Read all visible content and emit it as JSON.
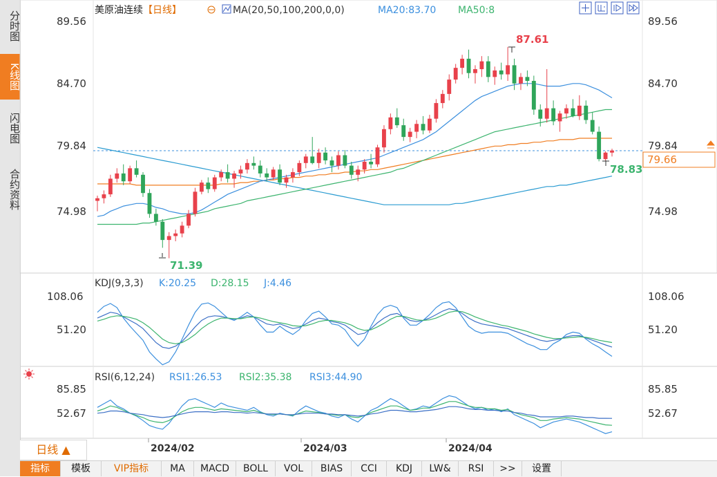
{
  "side_tabs": [
    "分时图",
    "K线图",
    "闪电图",
    "合约资料"
  ],
  "main_header": {
    "symbol": "美原油连续",
    "period": "【日线】",
    "ma_label": "MA(20,50,100,200,0,0)",
    "ma20": "MA20:83.70",
    "ma50": "MA50:8"
  },
  "price_axis": [
    "89.56",
    "84.70",
    "79.84",
    "74.98"
  ],
  "current_price": "79.66",
  "labels": {
    "high": "87.61",
    "low": "71.39",
    "last_low": "78.83"
  },
  "kdj": {
    "title": "KDJ(9,3,3)",
    "k": "K:20.25",
    "d": "D:28.15",
    "j": "J:4.46",
    "ticks": [
      "108.06",
      "51.20"
    ]
  },
  "rsi": {
    "title": "RSI(6,12,24)",
    "rsi1": "RSI1:26.53",
    "rsi2": "RSI2:35.38",
    "rsi3": "RSI3:44.90",
    "ticks": [
      "85.85",
      "52.67"
    ]
  },
  "x_dates": [
    "2024/02",
    "2024/03",
    "2024/04"
  ],
  "period_button": "日线 ▲",
  "bottom_tabs": [
    "指标",
    "模板",
    "VIP指标",
    "MA",
    "MACD",
    "BOLL",
    "VOL",
    "BIAS",
    "CCI",
    "KDJ",
    "LW&",
    "RSI",
    ">>",
    "设置"
  ],
  "colors": {
    "up": "#e8414b",
    "down": "#2fa55a",
    "ma20": "#3b8fde",
    "ma50": "#3cb46e",
    "ma100": "#f07d21",
    "ma200": "#2a9bd1",
    "accent": "#f07d21"
  },
  "chart_data": {
    "type": "candlestick",
    "title": "美原油连续【日线】",
    "ylim": [
      70,
      90
    ],
    "candles": [
      [
        75.8,
        76.2,
        75.0,
        76.0
      ],
      [
        76.0,
        76.6,
        75.6,
        76.3
      ],
      [
        76.3,
        77.8,
        76.1,
        77.5
      ],
      [
        77.5,
        78.3,
        77.2,
        77.9
      ],
      [
        77.9,
        78.6,
        77.0,
        77.3
      ],
      [
        77.3,
        78.5,
        77.1,
        78.3
      ],
      [
        78.3,
        78.9,
        77.6,
        77.8
      ],
      [
        77.8,
        78.0,
        76.1,
        76.4
      ],
      [
        76.4,
        76.7,
        74.5,
        74.8
      ],
      [
        74.8,
        75.2,
        73.9,
        74.2
      ],
      [
        74.2,
        74.4,
        72.2,
        72.8
      ],
      [
        72.8,
        73.4,
        71.4,
        73.1
      ],
      [
        73.1,
        73.6,
        72.7,
        73.3
      ],
      [
        73.3,
        74.2,
        73.0,
        73.9
      ],
      [
        73.9,
        75.1,
        73.7,
        74.8
      ],
      [
        74.8,
        76.8,
        74.6,
        76.5
      ],
      [
        76.5,
        77.4,
        76.3,
        77.2
      ],
      [
        77.2,
        77.6,
        76.4,
        76.7
      ],
      [
        76.7,
        77.8,
        76.5,
        77.6
      ],
      [
        77.6,
        78.2,
        77.3,
        78.0
      ],
      [
        78.0,
        78.6,
        77.2,
        77.5
      ],
      [
        77.5,
        78.1,
        76.8,
        77.9
      ],
      [
        77.9,
        78.5,
        77.5,
        78.2
      ],
      [
        78.2,
        79.0,
        77.9,
        78.7
      ],
      [
        78.7,
        79.2,
        78.2,
        78.5
      ],
      [
        78.5,
        78.9,
        77.6,
        77.9
      ],
      [
        77.9,
        78.3,
        77.3,
        77.6
      ],
      [
        77.6,
        78.4,
        77.4,
        78.2
      ],
      [
        78.2,
        78.6,
        77.0,
        77.2
      ],
      [
        77.2,
        77.8,
        76.8,
        77.6
      ],
      [
        77.6,
        78.3,
        77.2,
        78.0
      ],
      [
        78.0,
        78.9,
        77.7,
        78.7
      ],
      [
        78.7,
        79.4,
        78.3,
        79.2
      ],
      [
        79.2,
        80.7,
        78.6,
        78.7
      ],
      [
        78.7,
        79.8,
        78.3,
        79.5
      ],
      [
        79.5,
        79.9,
        78.6,
        78.9
      ],
      [
        78.9,
        79.2,
        78.0,
        78.5
      ],
      [
        78.5,
        79.6,
        78.2,
        79.3
      ],
      [
        79.3,
        79.7,
        78.3,
        78.5
      ],
      [
        78.5,
        78.8,
        77.5,
        77.8
      ],
      [
        77.8,
        78.5,
        77.3,
        78.2
      ],
      [
        78.2,
        79.0,
        77.9,
        78.8
      ],
      [
        78.8,
        79.4,
        78.3,
        78.6
      ],
      [
        78.6,
        80.1,
        78.4,
        79.9
      ],
      [
        79.9,
        81.6,
        79.5,
        81.3
      ],
      [
        81.3,
        82.5,
        80.9,
        82.2
      ],
      [
        82.2,
        82.9,
        81.4,
        81.6
      ],
      [
        81.6,
        82.1,
        80.4,
        80.7
      ],
      [
        80.7,
        81.4,
        80.3,
        81.1
      ],
      [
        81.1,
        82.0,
        80.6,
        81.7
      ],
      [
        81.7,
        82.3,
        80.9,
        81.2
      ],
      [
        81.2,
        82.4,
        81.0,
        82.1
      ],
      [
        82.1,
        83.6,
        81.8,
        83.3
      ],
      [
        83.3,
        84.3,
        82.9,
        84.0
      ],
      [
        84.0,
        85.5,
        83.5,
        85.1
      ],
      [
        85.1,
        86.3,
        84.8,
        86.0
      ],
      [
        86.0,
        87.0,
        85.5,
        86.7
      ],
      [
        86.7,
        87.4,
        85.2,
        85.6
      ],
      [
        85.6,
        86.2,
        84.8,
        85.9
      ],
      [
        85.9,
        86.9,
        85.3,
        86.5
      ],
      [
        86.5,
        86.9,
        84.9,
        85.3
      ],
      [
        85.3,
        86.1,
        84.7,
        85.8
      ],
      [
        85.8,
        86.4,
        85.1,
        85.5
      ],
      [
        85.5,
        87.61,
        85.0,
        86.2
      ],
      [
        86.2,
        86.7,
        84.3,
        84.8
      ],
      [
        84.8,
        85.6,
        84.3,
        85.3
      ],
      [
        85.3,
        85.8,
        84.6,
        85.0
      ],
      [
        85.0,
        85.4,
        82.4,
        82.8
      ],
      [
        82.8,
        83.2,
        81.5,
        82.1
      ],
      [
        82.1,
        85.9,
        81.8,
        82.9
      ],
      [
        82.9,
        83.5,
        81.6,
        81.9
      ],
      [
        81.9,
        82.7,
        81.1,
        82.5
      ],
      [
        82.5,
        83.2,
        82.1,
        82.9
      ],
      [
        82.9,
        83.6,
        82.2,
        82.3
      ],
      [
        82.3,
        83.9,
        82.0,
        83.1
      ],
      [
        83.1,
        83.5,
        81.7,
        82.0
      ],
      [
        82.0,
        82.6,
        80.9,
        81.1
      ],
      [
        81.1,
        81.5,
        78.83,
        79.0
      ],
      [
        79.0,
        79.6,
        78.9,
        79.5
      ],
      [
        79.5,
        79.8,
        79.2,
        79.66
      ]
    ],
    "ma20": [
      74.6,
      74.7,
      75.0,
      75.2,
      75.4,
      75.5,
      75.6,
      75.6,
      75.5,
      75.3,
      75.2,
      75.0,
      74.9,
      74.8,
      74.8,
      74.9,
      75.1,
      75.4,
      75.7,
      76.0,
      76.3,
      76.5,
      76.7,
      76.9,
      77.1,
      77.3,
      77.4,
      77.5,
      77.6,
      77.7,
      77.8,
      77.9,
      78.0,
      78.1,
      78.2,
      78.3,
      78.4,
      78.5,
      78.6,
      78.7,
      78.8,
      78.9,
      79.0,
      79.1,
      79.3,
      79.5,
      79.7,
      79.9,
      80.1,
      80.3,
      80.5,
      80.8,
      81.1,
      81.5,
      81.9,
      82.3,
      82.7,
      83.1,
      83.5,
      83.8,
      84.0,
      84.2,
      84.4,
      84.6,
      84.7,
      84.8,
      84.8,
      84.8,
      84.7,
      84.6,
      84.6,
      84.6,
      84.7,
      84.8,
      84.8,
      84.7,
      84.5,
      84.3,
      84.0,
      83.7
    ],
    "ma50": [
      74.0,
      74.0,
      74.0,
      74.0,
      74.0,
      74.0,
      74.0,
      74.1,
      74.1,
      74.2,
      74.3,
      74.4,
      74.5,
      74.6,
      74.7,
      74.8,
      74.9,
      75.0,
      75.2,
      75.3,
      75.4,
      75.5,
      75.6,
      75.8,
      75.9,
      76.0,
      76.1,
      76.2,
      76.3,
      76.4,
      76.5,
      76.6,
      76.7,
      76.8,
      76.9,
      77.0,
      77.1,
      77.2,
      77.3,
      77.4,
      77.5,
      77.6,
      77.7,
      77.8,
      77.9,
      78.0,
      78.2,
      78.3,
      78.5,
      78.7,
      78.9,
      79.1,
      79.3,
      79.5,
      79.7,
      79.9,
      80.1,
      80.3,
      80.5,
      80.7,
      80.9,
      81.1,
      81.2,
      81.3,
      81.4,
      81.5,
      81.6,
      81.7,
      81.8,
      81.9,
      82.0,
      82.1,
      82.2,
      82.3,
      82.4,
      82.5,
      82.6,
      82.7,
      82.8,
      82.8
    ],
    "ma100": [
      77.1,
      77.1,
      77.1,
      77.1,
      77.1,
      77.1,
      77.0,
      77.0,
      77.0,
      77.0,
      77.0,
      77.0,
      77.0,
      77.0,
      77.0,
      77.0,
      77.0,
      77.0,
      77.0,
      77.1,
      77.1,
      77.1,
      77.2,
      77.2,
      77.3,
      77.3,
      77.4,
      77.4,
      77.5,
      77.5,
      77.6,
      77.6,
      77.7,
      77.7,
      77.8,
      77.8,
      77.9,
      77.9,
      78.0,
      78.0,
      78.1,
      78.1,
      78.2,
      78.2,
      78.3,
      78.4,
      78.5,
      78.6,
      78.7,
      78.8,
      78.9,
      79.0,
      79.1,
      79.2,
      79.3,
      79.4,
      79.5,
      79.6,
      79.7,
      79.8,
      79.9,
      80.0,
      80.0,
      80.1,
      80.1,
      80.2,
      80.2,
      80.3,
      80.3,
      80.4,
      80.4,
      80.5,
      80.5,
      80.5,
      80.6,
      80.6,
      80.6,
      80.6,
      80.6,
      80.6
    ],
    "ma200": [
      79.9,
      79.8,
      79.7,
      79.6,
      79.5,
      79.4,
      79.3,
      79.2,
      79.1,
      79.0,
      78.9,
      78.8,
      78.7,
      78.6,
      78.5,
      78.4,
      78.3,
      78.2,
      78.1,
      78.0,
      77.9,
      77.8,
      77.7,
      77.6,
      77.5,
      77.4,
      77.3,
      77.2,
      77.1,
      77.0,
      76.9,
      76.8,
      76.7,
      76.6,
      76.5,
      76.4,
      76.3,
      76.2,
      76.1,
      76.0,
      75.9,
      75.8,
      75.7,
      75.6,
      75.5,
      75.5,
      75.5,
      75.5,
      75.5,
      75.5,
      75.5,
      75.5,
      75.5,
      75.5,
      75.5,
      75.6,
      75.6,
      75.7,
      75.8,
      75.9,
      76.0,
      76.1,
      76.2,
      76.3,
      76.4,
      76.5,
      76.6,
      76.7,
      76.8,
      76.9,
      76.9,
      77.0,
      77.0,
      77.1,
      77.2,
      77.3,
      77.4,
      77.5,
      77.6,
      77.7
    ],
    "kdj": {
      "ylim": [
        0,
        130
      ],
      "k": [
        70,
        75,
        80,
        78,
        72,
        66,
        60,
        52,
        40,
        28,
        20,
        18,
        22,
        30,
        42,
        55,
        66,
        72,
        74,
        73,
        70,
        68,
        70,
        74,
        72,
        66,
        60,
        58,
        60,
        56,
        52,
        54,
        60,
        66,
        70,
        68,
        64,
        62,
        58,
        50,
        42,
        44,
        52,
        62,
        70,
        76,
        78,
        72,
        66,
        64,
        66,
        70,
        76,
        82,
        86,
        84,
        78,
        70,
        64,
        60,
        58,
        56,
        54,
        52,
        48,
        44,
        40,
        36,
        32,
        30,
        32,
        34,
        38,
        40,
        40,
        36,
        32,
        28,
        24,
        20.25
      ],
      "d": [
        65,
        68,
        72,
        74,
        73,
        71,
        68,
        62,
        54,
        44,
        34,
        28,
        26,
        28,
        34,
        42,
        52,
        60,
        66,
        70,
        70,
        69,
        69,
        71,
        72,
        70,
        67,
        64,
        62,
        60,
        57,
        56,
        57,
        60,
        64,
        66,
        66,
        64,
        62,
        58,
        52,
        49,
        50,
        55,
        61,
        68,
        73,
        73,
        70,
        67,
        66,
        67,
        70,
        75,
        80,
        82,
        81,
        77,
        72,
        68,
        64,
        61,
        58,
        56,
        53,
        50,
        47,
        43,
        40,
        37,
        35,
        35,
        36,
        37,
        38,
        37,
        35,
        32,
        30,
        28.15
      ],
      "j": [
        80,
        90,
        95,
        88,
        70,
        56,
        44,
        32,
        12,
        0,
        -10,
        -5,
        12,
        34,
        58,
        80,
        94,
        96,
        90,
        80,
        70,
        66,
        72,
        80,
        72,
        58,
        46,
        46,
        56,
        48,
        42,
        50,
        66,
        78,
        82,
        72,
        60,
        58,
        50,
        34,
        22,
        34,
        56,
        76,
        88,
        92,
        88,
        70,
        58,
        58,
        66,
        76,
        88,
        96,
        98,
        88,
        72,
        56,
        48,
        44,
        46,
        46,
        46,
        44,
        38,
        32,
        26,
        22,
        16,
        16,
        26,
        32,
        42,
        46,
        44,
        34,
        26,
        20,
        12,
        4.46
      ]
    },
    "rsi": {
      "ylim": [
        20,
        110
      ],
      "rsi1": [
        60,
        65,
        70,
        62,
        58,
        52,
        48,
        42,
        35,
        32,
        30,
        38,
        50,
        62,
        70,
        72,
        68,
        64,
        60,
        66,
        62,
        60,
        58,
        56,
        60,
        54,
        50,
        48,
        52,
        50,
        48,
        56,
        62,
        58,
        54,
        52,
        48,
        46,
        50,
        44,
        40,
        48,
        56,
        60,
        66,
        72,
        68,
        62,
        56,
        58,
        62,
        60,
        66,
        72,
        76,
        74,
        68,
        62,
        58,
        60,
        56,
        58,
        54,
        58,
        50,
        46,
        42,
        38,
        32,
        36,
        40,
        42,
        44,
        42,
        40,
        36,
        32,
        28,
        24,
        26.53
      ],
      "rsi2": [
        55,
        58,
        62,
        60,
        56,
        52,
        49,
        46,
        42,
        40,
        39,
        42,
        48,
        54,
        58,
        60,
        60,
        58,
        56,
        58,
        57,
        56,
        55,
        54,
        56,
        53,
        51,
        50,
        51,
        50,
        49,
        52,
        55,
        54,
        53,
        51,
        50,
        49,
        50,
        47,
        46,
        49,
        53,
        56,
        59,
        62,
        62,
        59,
        56,
        57,
        59,
        59,
        62,
        65,
        68,
        68,
        65,
        62,
        60,
        60,
        58,
        58,
        56,
        57,
        53,
        50,
        48,
        46,
        42,
        42,
        44,
        45,
        46,
        45,
        44,
        42,
        40,
        38,
        36,
        35.38
      ],
      "rsi3": [
        52,
        53,
        55,
        55,
        54,
        52,
        51,
        50,
        48,
        47,
        46,
        47,
        49,
        51,
        53,
        54,
        54,
        54,
        53,
        54,
        54,
        53,
        53,
        52,
        53,
        52,
        51,
        51,
        51,
        50,
        50,
        51,
        52,
        52,
        52,
        51,
        51,
        50,
        50,
        49,
        48,
        49,
        51,
        52,
        54,
        56,
        56,
        55,
        54,
        54,
        55,
        56,
        57,
        59,
        61,
        61,
        60,
        58,
        57,
        57,
        56,
        56,
        55,
        55,
        53,
        52,
        50,
        49,
        47,
        47,
        47,
        47,
        48,
        48,
        47,
        46,
        46,
        45,
        45,
        44.9
      ]
    },
    "x_labels": [
      "2024/02",
      "2024/03",
      "2024/04"
    ]
  }
}
